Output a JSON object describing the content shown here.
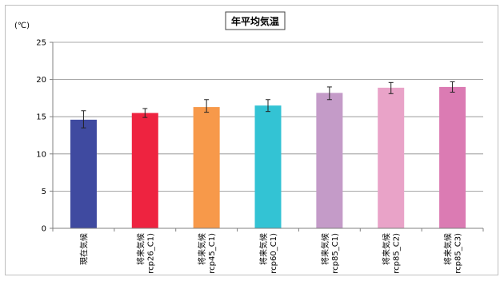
{
  "chart_data": {
    "type": "bar",
    "title": "年平均気温",
    "ylabel": "(℃)",
    "xlabel": "",
    "ylim": [
      0,
      25
    ],
    "yticks": [
      0,
      5,
      10,
      15,
      20,
      25
    ],
    "grid": true,
    "categories": [
      [
        "現在気候"
      ],
      [
        "将来気候",
        "rcp26_C1)"
      ],
      [
        "将来気候",
        "rcp45_C1)"
      ],
      [
        "将来気候",
        "rcp60_C1)"
      ],
      [
        "将来気候",
        "rcp85_C1)"
      ],
      [
        "将来気候",
        "rcp85_C2)"
      ],
      [
        "将来気候",
        "rcp85_C3)"
      ]
    ],
    "values": [
      14.6,
      15.5,
      16.3,
      16.5,
      18.2,
      18.9,
      19.0
    ],
    "error_low": [
      13.5,
      14.9,
      15.6,
      15.7,
      17.3,
      18.1,
      18.3
    ],
    "error_high": [
      15.8,
      16.1,
      17.3,
      17.3,
      19.0,
      19.6,
      19.7
    ],
    "colors": [
      "#3f4aa0",
      "#ee2340",
      "#f7994a",
      "#33c3d4",
      "#c49bc8",
      "#e9a3c8",
      "#db7bb3"
    ]
  }
}
